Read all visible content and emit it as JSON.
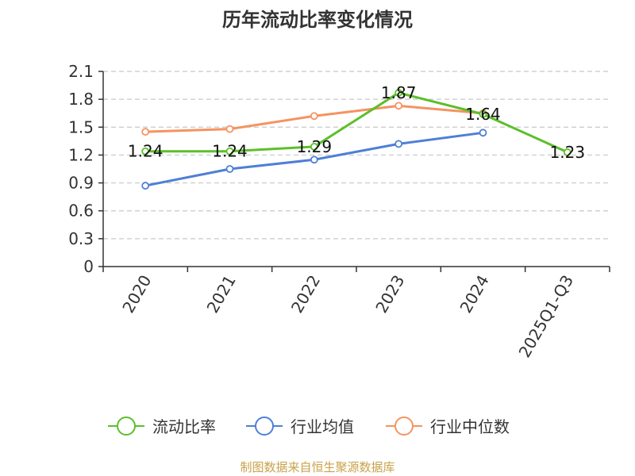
{
  "chart_data": {
    "type": "line",
    "title": "历年流动比率变化情况",
    "categories": [
      "2020",
      "2021",
      "2022",
      "2023",
      "2024",
      "2025Q1-Q3"
    ],
    "series": [
      {
        "name": "流动比率",
        "color": "#5cbf2a",
        "values": [
          1.24,
          1.24,
          1.29,
          1.87,
          1.64,
          1.23
        ],
        "labels": [
          "1.24",
          "1.24",
          "1.29",
          "1.87",
          "1.64",
          "1.23"
        ]
      },
      {
        "name": "行业均值",
        "color": "#4e7fd6",
        "values": [
          0.87,
          1.05,
          1.15,
          1.32,
          1.44,
          null
        ]
      },
      {
        "name": "行业中位数",
        "color": "#f59361",
        "values": [
          1.45,
          1.48,
          1.62,
          1.73,
          1.65,
          null
        ]
      }
    ],
    "ylim": [
      0,
      2.1
    ],
    "yticks": [
      "0",
      "0.3",
      "0.6",
      "0.9",
      "1.2",
      "1.5",
      "1.8",
      "2.1"
    ],
    "grid": true,
    "legend_position": "bottom",
    "xlabel": "",
    "ylabel": ""
  },
  "source": {
    "text": "制图数据来自恒生聚源数据库",
    "color": "#c8a24a"
  }
}
